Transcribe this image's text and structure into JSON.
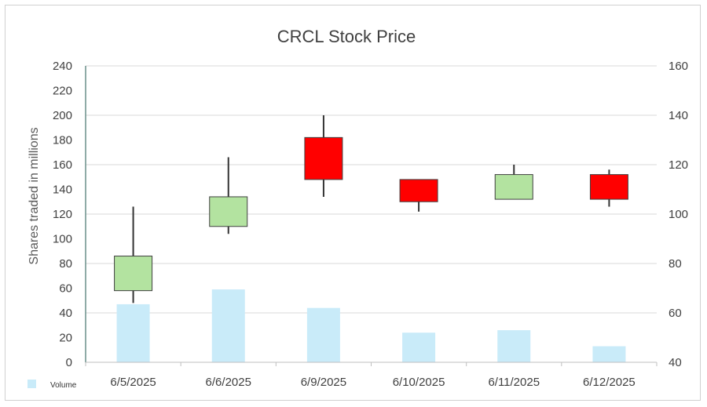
{
  "chart_data": {
    "type": "candlestick",
    "title": "CRCL Stock Price",
    "ylabel_left": "Shares traded in millions",
    "ylabel_right": "",
    "categories": [
      "6/5/2025",
      "6/6/2025",
      "6/9/2025",
      "6/10/2025",
      "6/11/2025",
      "6/12/2025"
    ],
    "left_axis": {
      "min": 0,
      "max": 240,
      "step": 20
    },
    "right_axis": {
      "min": 40,
      "max": 160,
      "step": 20
    },
    "volume": {
      "name": "Volume",
      "values": [
        47,
        59,
        44,
        24,
        26,
        13
      ],
      "color": "#c9ebf9"
    },
    "ohlc": [
      {
        "open": 69,
        "high": 103,
        "low": 64,
        "close": 83
      },
      {
        "open": 95,
        "high": 123,
        "low": 92,
        "close": 107
      },
      {
        "open": 131,
        "high": 140,
        "low": 107,
        "close": 114
      },
      {
        "open": 114,
        "high": 114,
        "low": 101,
        "close": 105
      },
      {
        "open": 106,
        "high": 120,
        "low": 106,
        "close": 116
      },
      {
        "open": 116,
        "high": 118,
        "low": 103,
        "close": 106
      }
    ],
    "colors": {
      "up": "#b3e3a0",
      "down": "#ff0000",
      "wick": "#333333",
      "grid": "#d9d9d9"
    },
    "legend": {
      "position": "bottom-left",
      "entries": [
        "Volume"
      ]
    },
    "grid": true
  }
}
